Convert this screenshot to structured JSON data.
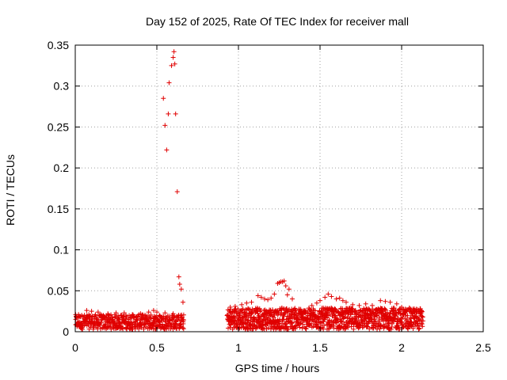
{
  "chart_data": {
    "type": "scatter",
    "title": "Day 152 of 2025, Rate Of TEC Index for receiver mall",
    "xlabel": "GPS time / hours",
    "ylabel": "ROTI / TECUs",
    "xlim": [
      0,
      2.5
    ],
    "ylim": [
      0,
      0.35
    ],
    "xticks": [
      0,
      0.5,
      1,
      1.5,
      2,
      2.5
    ],
    "xtick_labels": [
      "0",
      "0.5",
      "1",
      "1.5",
      "2",
      "2.5"
    ],
    "yticks": [
      0,
      0.05,
      0.1,
      0.15,
      0.2,
      0.25,
      0.3,
      0.35
    ],
    "ytick_labels": [
      "0",
      "0.05",
      "0.1",
      "0.15",
      "0.2",
      "0.25",
      "0.3",
      "0.35"
    ],
    "grid": true,
    "marker": "+",
    "color": "#e00000",
    "series": [
      {
        "name": "ROTI",
        "points": [
          [
            0.54,
            0.285
          ],
          [
            0.55,
            0.252
          ],
          [
            0.56,
            0.222
          ],
          [
            0.57,
            0.266
          ],
          [
            0.575,
            0.304
          ],
          [
            0.59,
            0.325
          ],
          [
            0.6,
            0.335
          ],
          [
            0.605,
            0.342
          ],
          [
            0.61,
            0.327
          ],
          [
            0.615,
            0.266
          ],
          [
            0.625,
            0.171
          ],
          [
            0.635,
            0.067
          ],
          [
            0.64,
            0.058
          ],
          [
            0.65,
            0.052
          ],
          [
            0.66,
            0.036
          ],
          [
            1.12,
            0.044
          ],
          [
            1.14,
            0.042
          ],
          [
            1.16,
            0.04
          ],
          [
            1.18,
            0.039
          ],
          [
            1.2,
            0.041
          ],
          [
            1.22,
            0.046
          ],
          [
            1.24,
            0.059
          ],
          [
            1.25,
            0.06
          ],
          [
            1.26,
            0.061
          ],
          [
            1.27,
            0.061
          ],
          [
            1.28,
            0.062
          ],
          [
            1.29,
            0.056
          ],
          [
            1.31,
            0.052
          ],
          [
            1.33,
            0.04
          ],
          [
            1.3,
            0.045
          ],
          [
            1.08,
            0.036
          ],
          [
            1.05,
            0.035
          ],
          [
            1.02,
            0.033
          ],
          [
            0.98,
            0.031
          ],
          [
            0.95,
            0.03
          ],
          [
            1.45,
            0.032
          ],
          [
            1.5,
            0.038
          ],
          [
            1.53,
            0.042
          ],
          [
            1.55,
            0.046
          ],
          [
            1.57,
            0.043
          ],
          [
            1.6,
            0.04
          ],
          [
            1.62,
            0.041
          ],
          [
            1.64,
            0.038
          ],
          [
            1.66,
            0.036
          ],
          [
            1.48,
            0.035
          ],
          [
            1.7,
            0.033
          ],
          [
            1.74,
            0.032
          ],
          [
            1.78,
            0.034
          ],
          [
            1.82,
            0.032
          ],
          [
            1.87,
            0.038
          ],
          [
            1.9,
            0.037
          ],
          [
            1.93,
            0.036
          ],
          [
            1.97,
            0.034
          ],
          [
            2.0,
            0.03
          ],
          [
            2.04,
            0.027
          ],
          [
            2.08,
            0.024
          ],
          [
            2.12,
            0.023
          ],
          [
            0.07,
            0.026
          ],
          [
            0.1,
            0.025
          ],
          [
            0.14,
            0.024
          ],
          [
            0.2,
            0.022
          ],
          [
            0.25,
            0.023
          ],
          [
            0.3,
            0.023
          ],
          [
            0.35,
            0.021
          ],
          [
            0.4,
            0.022
          ],
          [
            0.45,
            0.024
          ],
          [
            0.48,
            0.026
          ],
          [
            0.5,
            0.024
          ],
          [
            0.55,
            0.023
          ],
          [
            0.6,
            0.022
          ],
          [
            0.02,
            0.021
          ],
          [
            0.04,
            0.019
          ]
        ]
      }
    ]
  }
}
